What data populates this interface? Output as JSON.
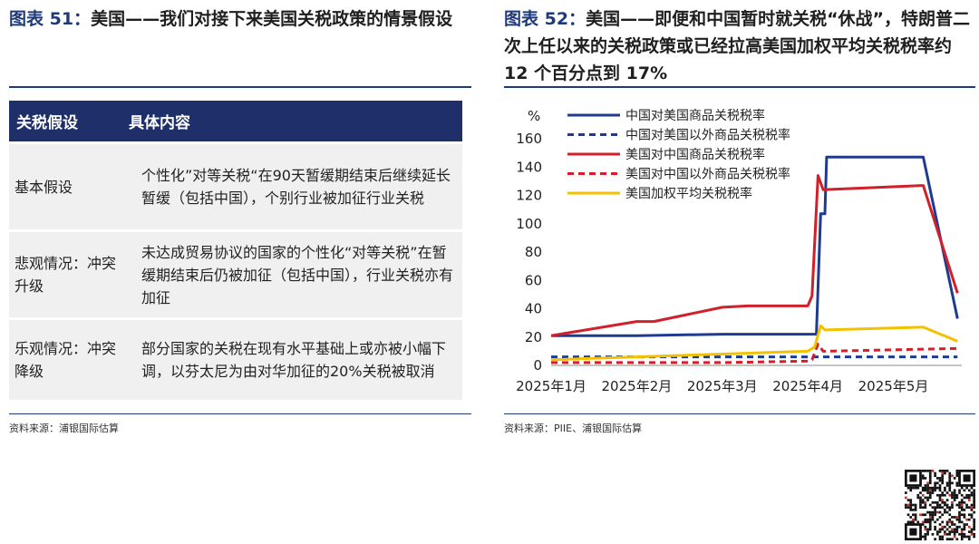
{
  "left": {
    "fig_label": "图表 51：",
    "fig_title": "美国——我们对接下来美国关税政策的情景假设",
    "table_headers": [
      "关税假设",
      "具体内容"
    ],
    "rows": [
      {
        "scenario": "基本假设",
        "content": "个性化”对等关税“在90天暂缓期结束后继续延长暂缓（包括中国），个别行业被加征行业关税"
      },
      {
        "scenario": "悲观情况：冲突升级",
        "content": "未达成贸易协议的国家的个性化“对等关税”在暂缓期结束后仍被加征（包括中国），行业关税亦有加征"
      },
      {
        "scenario": "乐观情况：冲突降级",
        "content": "部分国家的关税在现有水平基础上或亦被小幅下调，以芬太尼为由对华加征的20%关税被取消"
      }
    ],
    "source": "资料来源：浦银国际估算"
  },
  "right": {
    "fig_label": "图表 52：",
    "fig_title": "美国——即便和中国暂时就关税“休战”，特朗普二次上任以来的关税政策或已经拉高美国加权平均关税税率约 12 个百分点到 17%",
    "source": "资料来源：PIIE、浦银国际估算"
  },
  "chart_data": {
    "type": "line",
    "unit_label": "%",
    "ylim": [
      0,
      160
    ],
    "yticks": [
      0,
      20,
      40,
      60,
      80,
      100,
      120,
      140,
      160
    ],
    "xlim": [
      1,
      5.8
    ],
    "xticks": [
      {
        "x": 1,
        "label": "2025年1月"
      },
      {
        "x": 2,
        "label": "2025年2月"
      },
      {
        "x": 3,
        "label": "2025年3月"
      },
      {
        "x": 4,
        "label": "2025年4月"
      },
      {
        "x": 5,
        "label": "2025年5月"
      }
    ],
    "grid": false,
    "legend_position": "top-left",
    "series": [
      {
        "name": "中国对美国商品关税税率",
        "color": "#1f3b8f",
        "dash": "solid",
        "points": [
          [
            1,
            21
          ],
          [
            2,
            21
          ],
          [
            3,
            22
          ],
          [
            4,
            22
          ],
          [
            4.1,
            22
          ],
          [
            4.15,
            107
          ],
          [
            4.2,
            107
          ],
          [
            4.22,
            147
          ],
          [
            5.35,
            147
          ],
          [
            5.75,
            33
          ]
        ]
      },
      {
        "name": "中国对美国以外商品关税税率",
        "color": "#1f3b8f",
        "dash": "dashed",
        "points": [
          [
            1,
            6
          ],
          [
            2,
            6
          ],
          [
            3,
            6
          ],
          [
            4,
            6
          ],
          [
            5,
            6
          ],
          [
            5.75,
            6
          ]
        ]
      },
      {
        "name": "美国对中国商品关税税率",
        "color": "#d0202a",
        "dash": "solid",
        "points": [
          [
            1,
            21
          ],
          [
            2,
            31
          ],
          [
            2.2,
            31
          ],
          [
            3,
            41
          ],
          [
            3.3,
            42
          ],
          [
            4,
            42
          ],
          [
            4.05,
            49
          ],
          [
            4.12,
            134
          ],
          [
            4.18,
            124
          ],
          [
            5.35,
            127
          ],
          [
            5.75,
            51
          ]
        ]
      },
      {
        "name": "美国对中国以外商品关税税率",
        "color": "#d0202a",
        "dash": "dashed",
        "points": [
          [
            1,
            2
          ],
          [
            2,
            2
          ],
          [
            3,
            2
          ],
          [
            4,
            3
          ],
          [
            4.05,
            4
          ],
          [
            4.12,
            15
          ],
          [
            4.18,
            10
          ],
          [
            5,
            11
          ],
          [
            5.75,
            12
          ]
        ]
      },
      {
        "name": "美国加权平均关税税率",
        "color": "#f5c000",
        "dash": "solid",
        "points": [
          [
            1,
            4
          ],
          [
            2,
            6
          ],
          [
            3,
            8
          ],
          [
            4,
            10
          ],
          [
            4.08,
            13
          ],
          [
            4.15,
            28
          ],
          [
            4.2,
            25
          ],
          [
            5.35,
            27
          ],
          [
            5.75,
            17
          ]
        ]
      }
    ]
  }
}
